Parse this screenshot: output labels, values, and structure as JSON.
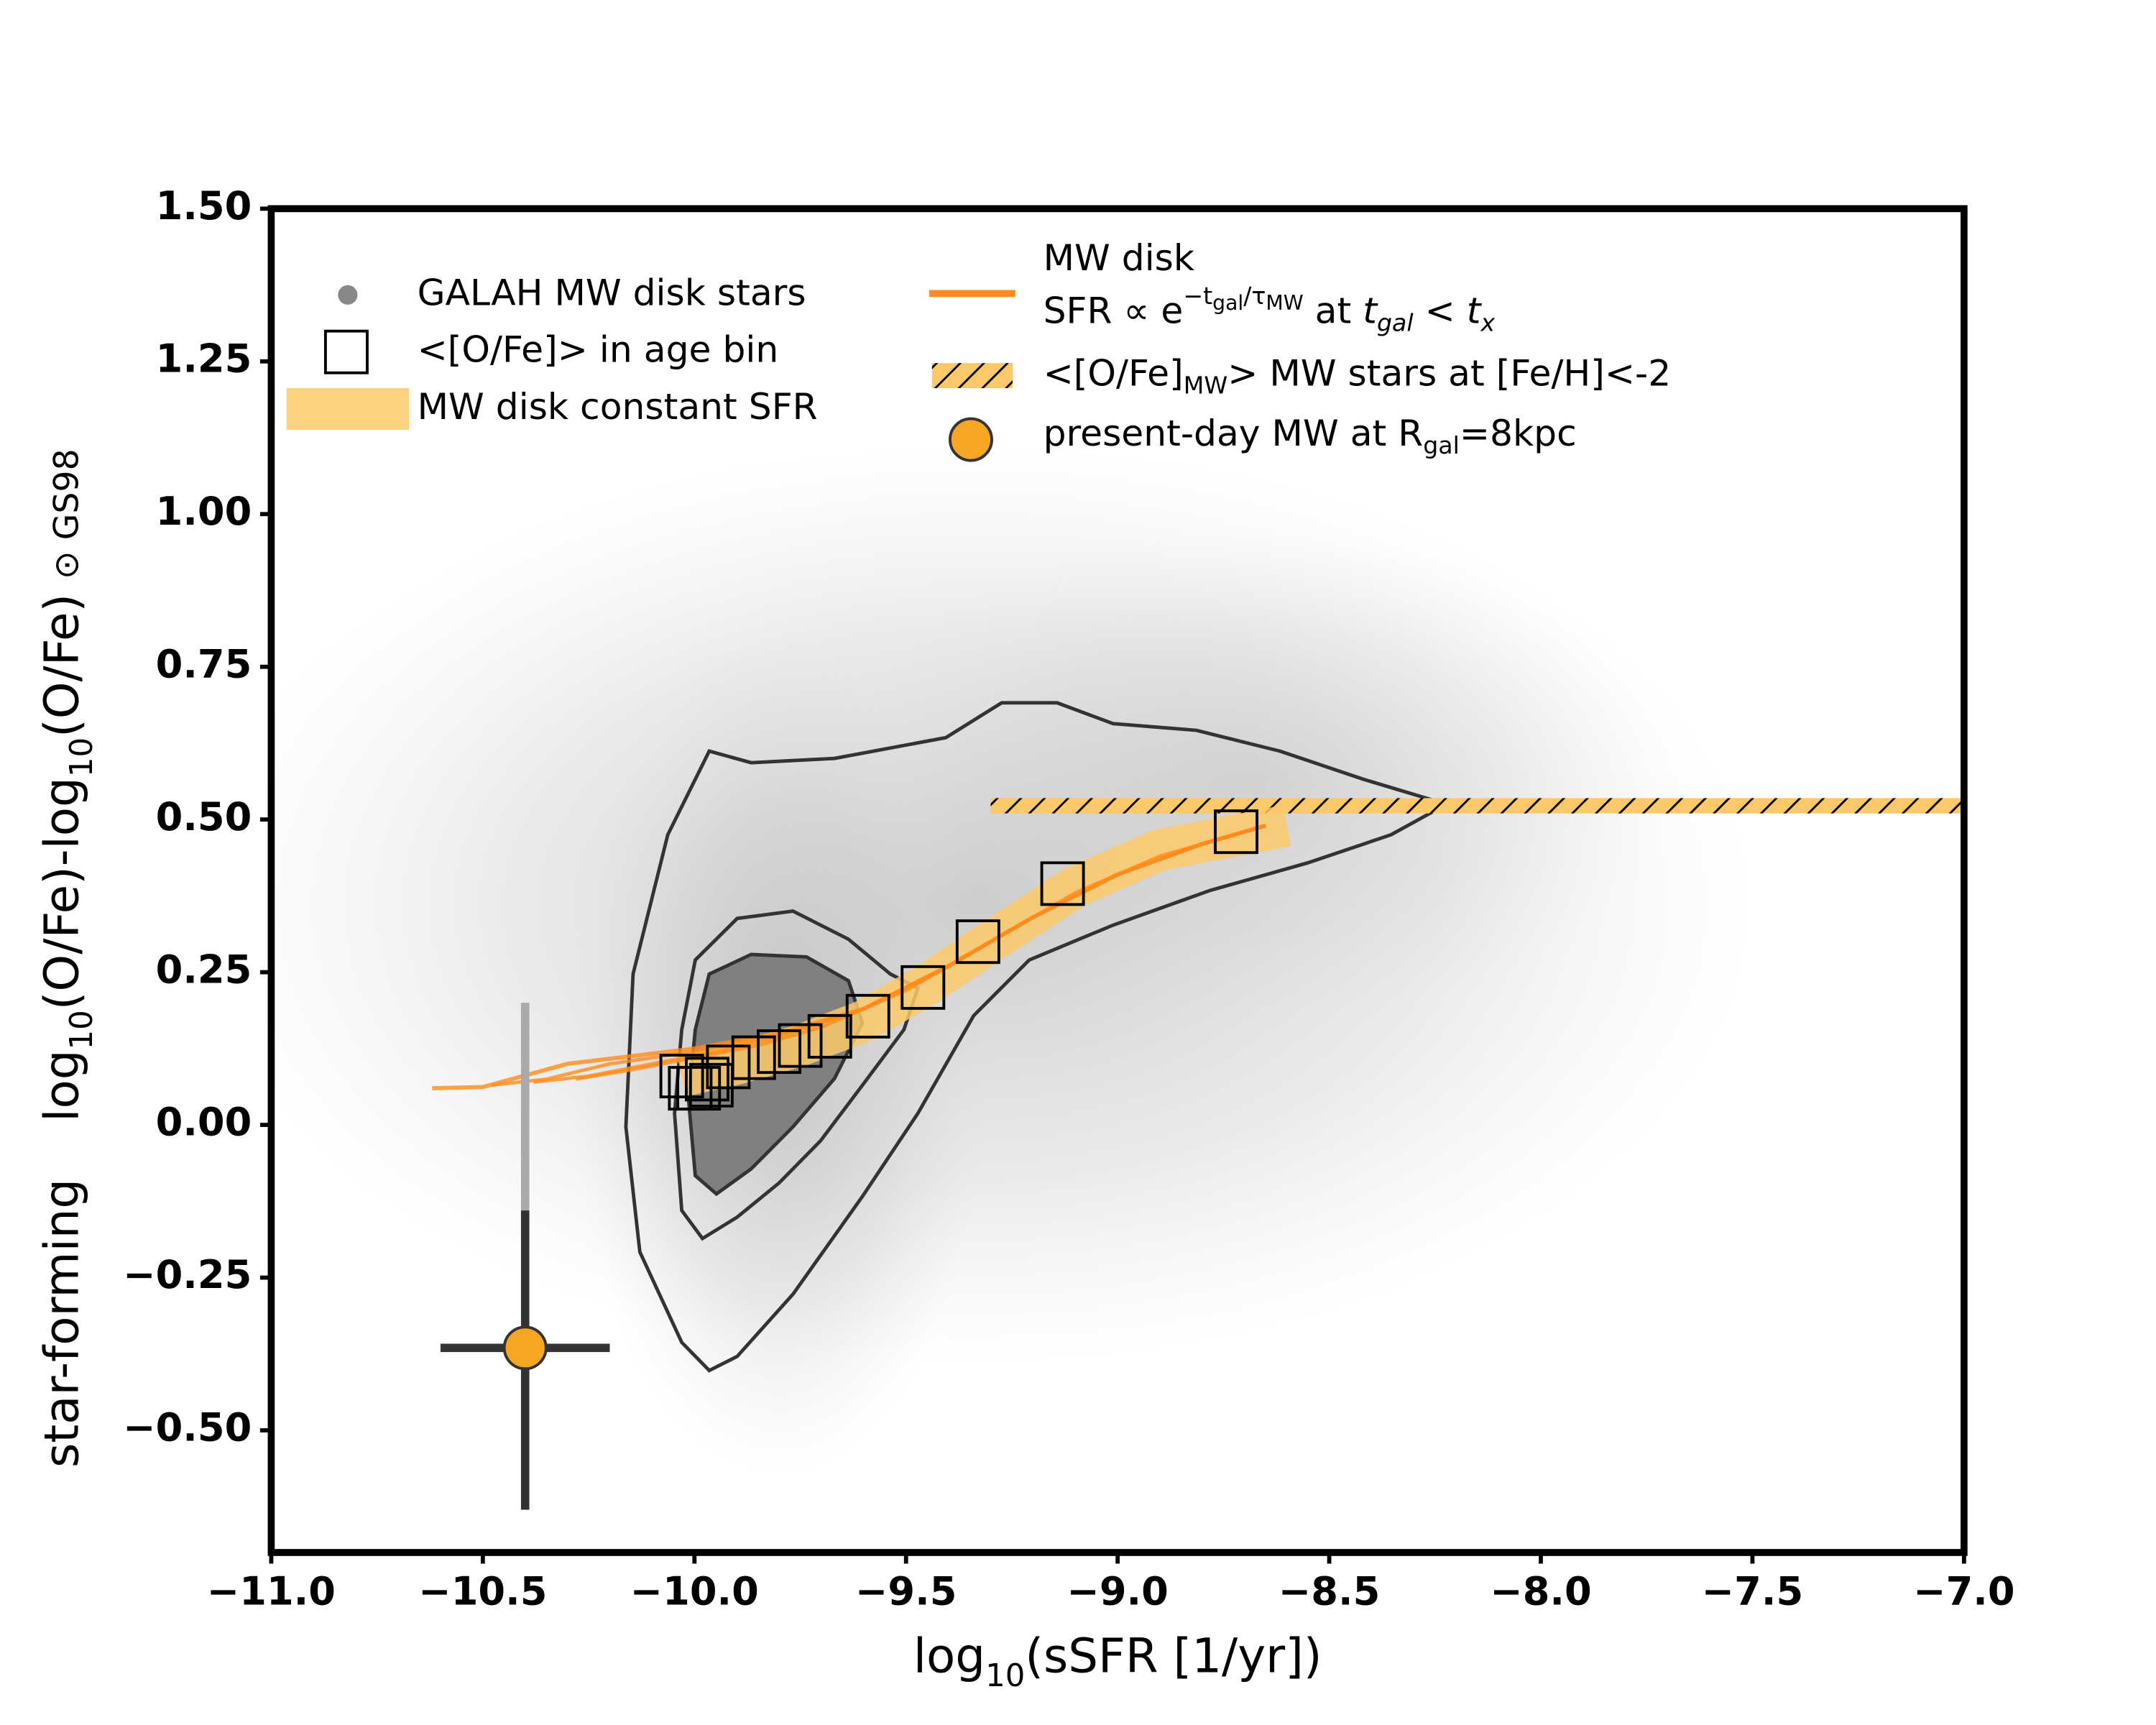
{
  "chart_data": {
    "type": "scatter",
    "xlim": [
      -11,
      -7
    ],
    "ylim": [
      -0.7,
      1.5
    ],
    "xticks": [
      {
        "value": -11,
        "label": "−11.0"
      },
      {
        "value": -10.5,
        "label": "−10.5"
      },
      {
        "value": -10,
        "label": "−10.0"
      },
      {
        "value": -9.5,
        "label": "−9.5"
      },
      {
        "value": -9,
        "label": "−9.0"
      },
      {
        "value": -8.5,
        "label": "−8.5"
      },
      {
        "value": -8,
        "label": "−8.0"
      },
      {
        "value": -7.5,
        "label": "−7.5"
      },
      {
        "value": -7,
        "label": "−7.0"
      }
    ],
    "yticks": [
      {
        "value": 1.5,
        "label": "1.50"
      },
      {
        "value": 1.25,
        "label": "1.25"
      },
      {
        "value": 1,
        "label": "1.00"
      },
      {
        "value": 0.75,
        "label": "0.75"
      },
      {
        "value": 0.5,
        "label": "0.50"
      },
      {
        "value": 0.25,
        "label": "0.25"
      },
      {
        "value": 0,
        "label": "0.00"
      },
      {
        "value": -0.25,
        "label": "−0.25"
      },
      {
        "value": -0.5,
        "label": "−0.50"
      }
    ],
    "xlabel": [
      {
        "t": "log"
      },
      {
        "t": "10",
        "sub": true
      },
      {
        "t": "(sSFR [1/yr])"
      }
    ],
    "ylabel": [
      {
        "t": "star-forming"
      },
      {
        "t": "log",
        "gap": true
      },
      {
        "t": "10",
        "sub": true
      },
      {
        "t": "(O/Fe)-log"
      },
      {
        "t": "10",
        "sub": true
      },
      {
        "t": "(O/Fe)"
      },
      {
        "t": "⊙ GS98",
        "small": true
      }
    ],
    "contours": [
      {
        "color": "#333333",
        "fill": "none",
        "x": [
          -9.965,
          -9.866,
          -9.669,
          -9.406,
          -9.274,
          -9.143,
          -9.011,
          -8.814,
          -8.617,
          -8.42,
          -8.223,
          -8.354,
          -8.551,
          -8.781,
          -9.011,
          -9.209,
          -9.34,
          -9.472,
          -9.603,
          -9.767,
          -9.899,
          -9.965,
          -10.03,
          -10.129,
          -10.162,
          -10.145,
          -10.063
        ],
        "y": [
          0.612,
          0.593,
          0.6,
          0.634,
          0.691,
          0.691,
          0.657,
          0.646,
          0.612,
          0.566,
          0.525,
          0.475,
          0.429,
          0.384,
          0.327,
          0.27,
          0.179,
          0.019,
          -0.117,
          -0.277,
          -0.379,
          -0.402,
          -0.356,
          -0.208,
          -0.003,
          0.247,
          0.475
        ]
      },
      {
        "color": "#333333",
        "fill": "none",
        "x": [
          -9.998,
          -9.899,
          -9.767,
          -9.636,
          -9.537,
          -9.472,
          -9.505,
          -9.603,
          -9.702,
          -9.8,
          -9.899,
          -9.981,
          -10.03,
          -10.047,
          -10.03
        ],
        "y": [
          0.27,
          0.338,
          0.35,
          0.304,
          0.247,
          0.224,
          0.156,
          0.065,
          -0.026,
          -0.095,
          -0.151,
          -0.186,
          -0.14,
          0.019,
          0.156
        ]
      },
      {
        "color": "#333333",
        "fill": "#808080",
        "x": [
          -9.965,
          -9.866,
          -9.735,
          -9.636,
          -9.603,
          -9.669,
          -9.767,
          -9.866,
          -9.948,
          -9.998,
          -10.014,
          -9.998
        ],
        "y": [
          0.247,
          0.279,
          0.275,
          0.236,
          0.167,
          0.076,
          -0.003,
          -0.072,
          -0.113,
          -0.083,
          0.042,
          0.156
        ]
      }
    ],
    "hatch_band": {
      "color": "#fbc96a",
      "x": [
        -9.3,
        -7
      ],
      "y": [
        0.51,
        0.535
      ]
    },
    "constant_sfr": {
      "color": "#fbc96a",
      "x": [
        -10.03,
        -9.9,
        -9.75,
        -9.6,
        -9.45,
        -9.3,
        -9.1,
        -8.9,
        -8.6
      ],
      "y": [
        0.08,
        0.1,
        0.13,
        0.17,
        0.23,
        0.3,
        0.39,
        0.45,
        0.49
      ]
    },
    "exp_lines": [
      {
        "color": "#ff8c1a",
        "x": [
          -10.62,
          -10.5,
          -10.3,
          -10.0,
          -9.8,
          -9.6,
          -9.4,
          -9.2,
          -9.0,
          -8.8,
          -8.65
        ],
        "y": [
          0.06,
          0.062,
          0.1,
          0.125,
          0.15,
          0.19,
          0.26,
          0.34,
          0.41,
          0.46,
          0.49
        ]
      },
      {
        "color": "#ff8c1a",
        "x": [
          -10.48,
          -10.35,
          -10.2,
          -10.0,
          -9.8,
          -9.6,
          -9.4,
          -9.2,
          -9.0,
          -8.8,
          -8.65
        ],
        "y": [
          0.065,
          0.075,
          0.1,
          0.12,
          0.148,
          0.19,
          0.26,
          0.34,
          0.41,
          0.46,
          0.49
        ]
      },
      {
        "color": "#ff8c1a",
        "x": [
          -10.38,
          -10.25,
          -10.1,
          -9.95,
          -9.8,
          -9.6,
          -9.4,
          -9.2,
          -9.0,
          -8.8,
          -8.65
        ],
        "y": [
          0.07,
          0.08,
          0.1,
          0.12,
          0.145,
          0.19,
          0.26,
          0.34,
          0.41,
          0.46,
          0.49
        ]
      },
      {
        "color": "#ff8c1a",
        "x": [
          -10.28,
          -10.15,
          -10.0,
          -9.85,
          -9.7,
          -9.5,
          -9.3,
          -9.1,
          -8.9,
          -8.65
        ],
        "y": [
          0.075,
          0.09,
          0.11,
          0.13,
          0.16,
          0.22,
          0.3,
          0.38,
          0.44,
          0.49
        ]
      }
    ],
    "age_bins": {
      "color": "#000000",
      "x": [
        -8.72,
        -9.13,
        -9.33,
        -9.46,
        -9.59,
        -9.68,
        -9.75,
        -9.8,
        -9.86,
        -9.92,
        -9.97,
        -10.03,
        -9.99,
        -10.01,
        -9.96
      ],
      "y": [
        0.48,
        0.395,
        0.3,
        0.225,
        0.178,
        0.145,
        0.13,
        0.12,
        0.11,
        0.095,
        0.075,
        0.08,
        0.06,
        0.06,
        0.065
      ]
    },
    "present_day": {
      "color": "#f5a623",
      "x": -10.4,
      "y": -0.365,
      "xerr": 0.2,
      "yerr": [
        0.265,
        0.225
      ],
      "yerr_extra_upper": 0.34
    },
    "legend": [
      [
        {
          "t": "GALAH MW disk stars"
        }
      ],
      [
        {
          "t": "<[O/Fe]> in age bin"
        }
      ],
      [
        {
          "t": "MW disk constant SFR"
        }
      ],
      [
        {
          "t": "MW disk"
        }
      ],
      [
        {
          "t": "SFR ∝  e"
        },
        {
          "t": "−t",
          "sup": true
        },
        {
          "t": "gal",
          "supsub": true
        },
        {
          "t": "/τ",
          "sup": true
        },
        {
          "t": "MW",
          "supsub": true
        },
        {
          "t": " at "
        },
        {
          "t": "t",
          "italic": true
        },
        {
          "t": "gal",
          "sub": true,
          "italic": true
        },
        {
          "t": " < "
        },
        {
          "t": "t",
          "italic": true
        },
        {
          "t": "x",
          "sub": true,
          "italic": true
        }
      ],
      [
        {
          "t": "<[O/Fe]"
        },
        {
          "t": "MW",
          "sub": true
        },
        {
          "t": "> MW stars at [Fe/H]<-2"
        }
      ],
      [
        {
          "t": "present-day MW at R"
        },
        {
          "t": "gal",
          "sub": true
        },
        {
          "t": "=8kpc"
        }
      ]
    ]
  }
}
